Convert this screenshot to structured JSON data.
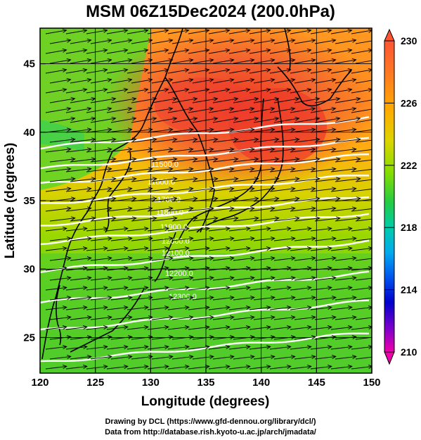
{
  "title": "MSM 06Z15Dec2024 (200.0hPa)",
  "x_axis": {
    "label": "Longitude (degrees)",
    "ticks": [
      "120",
      "125",
      "130",
      "135",
      "140",
      "145",
      "150"
    ]
  },
  "y_axis": {
    "label": "Latitude  (degrees)",
    "ticks": [
      "25",
      "30",
      "35",
      "40",
      "45"
    ]
  },
  "colorbar": {
    "labels": [
      "230",
      "226",
      "222",
      "218",
      "214",
      "210"
    ],
    "min": 210,
    "max": 230
  },
  "contour_labels": [
    "11500.0",
    "11600.0",
    "11700.0",
    "11800.0",
    "11900.0",
    "12000.0",
    "12100.0",
    "12200.0",
    "12300.0"
  ],
  "credits": {
    "line1": "Drawing by DCL (https://www.gfd-dennou.org/library/dcl/)",
    "line2": "Data from http://database.rish.kyoto-u.ac.jp/arch/jmadata/"
  },
  "colors": {
    "warm": "#ee4422",
    "mid": "#e8d000",
    "cool": "#3ed020"
  }
}
